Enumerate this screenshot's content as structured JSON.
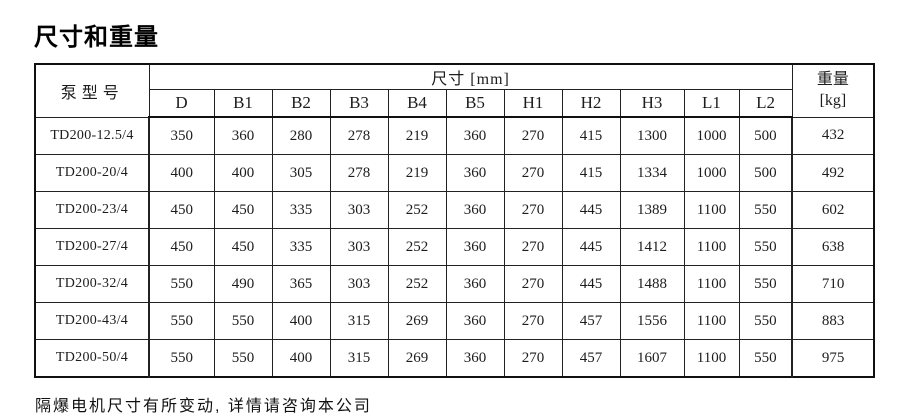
{
  "page": {
    "title": "尺寸和重量",
    "footnote": "隔爆电机尺寸有所变动, 详情请咨询本公司"
  },
  "table": {
    "header": {
      "model_label": "泵型号",
      "dims_label": "尺寸 [mm]",
      "weight_label_line1": "重量",
      "weight_label_line2": "[kg]",
      "dim_columns": [
        "D",
        "B1",
        "B2",
        "B3",
        "B4",
        "B5",
        "H1",
        "H2",
        "H3",
        "L1",
        "L2"
      ]
    },
    "rows": [
      {
        "model": "TD200-12.5/4",
        "values": [
          350,
          360,
          280,
          278,
          219,
          360,
          270,
          415,
          1300,
          1000,
          500
        ],
        "weight": 432
      },
      {
        "model": "TD200-20/4",
        "values": [
          400,
          400,
          305,
          278,
          219,
          360,
          270,
          415,
          1334,
          1000,
          500
        ],
        "weight": 492
      },
      {
        "model": "TD200-23/4",
        "values": [
          450,
          450,
          335,
          303,
          252,
          360,
          270,
          445,
          1389,
          1100,
          550
        ],
        "weight": 602
      },
      {
        "model": "TD200-27/4",
        "values": [
          450,
          450,
          335,
          303,
          252,
          360,
          270,
          445,
          1412,
          1100,
          550
        ],
        "weight": 638
      },
      {
        "model": "TD200-32/4",
        "values": [
          550,
          490,
          365,
          303,
          252,
          360,
          270,
          445,
          1488,
          1100,
          550
        ],
        "weight": 710
      },
      {
        "model": "TD200-43/4",
        "values": [
          550,
          550,
          400,
          315,
          269,
          360,
          270,
          457,
          1556,
          1100,
          550
        ],
        "weight": 883
      },
      {
        "model": "TD200-50/4",
        "values": [
          550,
          550,
          400,
          315,
          269,
          360,
          270,
          457,
          1607,
          1100,
          550
        ],
        "weight": 975
      }
    ]
  }
}
